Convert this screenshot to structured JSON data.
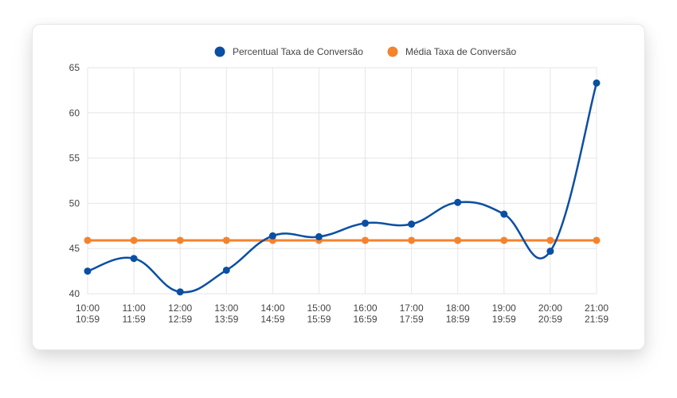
{
  "chart_data": {
    "type": "line",
    "x_labels": [
      [
        "10:00",
        "10:59"
      ],
      [
        "11:00",
        "11:59"
      ],
      [
        "12:00",
        "12:59"
      ],
      [
        "13:00",
        "13:59"
      ],
      [
        "14:00",
        "14:59"
      ],
      [
        "15:00",
        "15:59"
      ],
      [
        "16:00",
        "16:59"
      ],
      [
        "17:00",
        "17:59"
      ],
      [
        "18:00",
        "18:59"
      ],
      [
        "19:00",
        "19:59"
      ],
      [
        "20:00",
        "20:59"
      ],
      [
        "21:00",
        "21:59"
      ]
    ],
    "series": [
      {
        "name": "Percentual Taxa de Conversão",
        "color": "#0b4fa3",
        "smooth": true,
        "values": [
          42.5,
          43.9,
          40.2,
          42.6,
          46.4,
          46.3,
          47.8,
          47.7,
          50.1,
          48.8,
          44.7,
          63.3
        ]
      },
      {
        "name": "Média Taxa de Conversão",
        "color": "#f5822d",
        "smooth": false,
        "values": [
          45.9,
          45.9,
          45.9,
          45.9,
          45.9,
          45.9,
          45.9,
          45.9,
          45.9,
          45.9,
          45.9,
          45.9
        ]
      }
    ],
    "y_ticks": [
      40,
      45,
      50,
      55,
      60,
      65
    ],
    "ylim": [
      40,
      65
    ],
    "grid": true,
    "legend_position": "top-center"
  }
}
